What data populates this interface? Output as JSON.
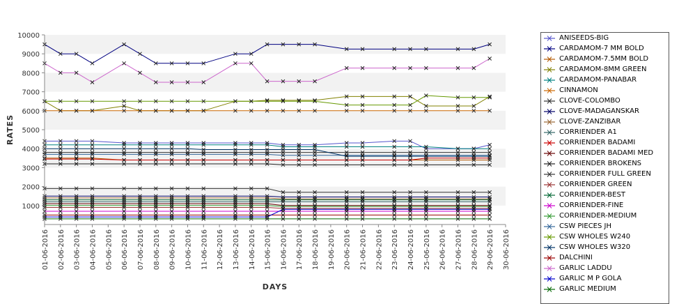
{
  "chart_data": {
    "type": "line",
    "xlabel": "DAYS",
    "ylabel": "RATES",
    "ylim": [
      0,
      10000
    ],
    "yticks": [
      1000,
      2000,
      3000,
      4000,
      5000,
      6000,
      7000,
      8000,
      9000,
      10000
    ],
    "categories": [
      "01-06-2016",
      "02-06-2016",
      "03-06-2016",
      "04-06-2016",
      "05-06-2016",
      "06-06-2016",
      "07-06-2016",
      "08-06-2016",
      "09-06-2016",
      "10-06-2016",
      "11-06-2016",
      "12-06-2016",
      "13-06-2016",
      "14-06-2016",
      "15-06-2016",
      "16-06-2016",
      "17-06-2016",
      "18-06-2016",
      "19-06-2016",
      "20-06-2016",
      "21-06-2016",
      "22-06-2016",
      "23-06-2016",
      "24-06-2016",
      "25-06-2016",
      "26-06-2016",
      "27-06-2016",
      "28-06-2016",
      "29-06-2016",
      "30-06-2016"
    ],
    "legend_position": "right",
    "grid": true,
    "series": [
      {
        "name": "ANISEEDS-BIG",
        "color": "#5555cc",
        "values": [
          4400,
          4400,
          4400,
          4400,
          null,
          4300,
          4300,
          4300,
          4300,
          4300,
          4300,
          null,
          4300,
          4300,
          4300,
          4200,
          4200,
          4200,
          null,
          4300,
          4300,
          null,
          4400,
          4400,
          4000,
          null,
          4000,
          4000,
          4200,
          null
        ]
      },
      {
        "name": "CARDAMOM-7 MM BOLD",
        "color": "#000080",
        "values": [
          9500,
          9000,
          9000,
          8500,
          null,
          9500,
          9000,
          8500,
          8500,
          8500,
          8500,
          null,
          9000,
          9000,
          9500,
          9500,
          9500,
          9500,
          null,
          9250,
          9250,
          null,
          9250,
          9250,
          9250,
          null,
          9250,
          9250,
          9500,
          null
        ]
      },
      {
        "name": "CARDAMOM-7.5MM BOLD",
        "color": "#b35900",
        "values": [
          3500,
          3500,
          3500,
          3500,
          null,
          3400,
          3400,
          3400,
          3400,
          3400,
          3400,
          null,
          3400,
          3400,
          3400,
          3400,
          3400,
          3400,
          null,
          3400,
          3400,
          null,
          3400,
          3400,
          3400,
          null,
          3400,
          3400,
          3400,
          null
        ]
      },
      {
        "name": "CARDAMOM-8MM GREEN",
        "color": "#808000",
        "values": [
          6500,
          6000,
          6000,
          6000,
          null,
          6250,
          6000,
          6000,
          6000,
          6000,
          6000,
          null,
          6500,
          6500,
          6550,
          6550,
          6550,
          6550,
          null,
          6750,
          6750,
          null,
          6750,
          6750,
          6250,
          null,
          6250,
          6250,
          6750,
          null
        ]
      },
      {
        "name": "CARDAMOM-PANABAR",
        "color": "#008080",
        "values": [
          4200,
          4200,
          4200,
          4200,
          null,
          4200,
          4200,
          4200,
          4200,
          4200,
          4200,
          null,
          4200,
          4200,
          4200,
          4100,
          4100,
          4100,
          null,
          4100,
          4100,
          null,
          4100,
          4100,
          4100,
          null,
          4000,
          4000,
          4000,
          null
        ]
      },
      {
        "name": "CINNAMON",
        "color": "#cc6600",
        "values": [
          6000,
          6000,
          6000,
          6000,
          null,
          6000,
          6000,
          6000,
          6000,
          6000,
          6000,
          null,
          6000,
          6000,
          6000,
          6000,
          6000,
          6000,
          null,
          6000,
          6000,
          null,
          6000,
          6000,
          6000,
          null,
          6000,
          6000,
          6000,
          null
        ]
      },
      {
        "name": "CLOVE-COLOMBO",
        "color": "#333333",
        "values": [
          1900,
          1900,
          1900,
          1900,
          null,
          1900,
          1900,
          1900,
          1900,
          1900,
          1900,
          null,
          1900,
          1900,
          1900,
          1700,
          1700,
          1700,
          null,
          1700,
          1700,
          null,
          1700,
          1700,
          1700,
          null,
          1700,
          1700,
          1700,
          null
        ]
      },
      {
        "name": "CLOVE-MADAGANSKAR",
        "color": "#000066",
        "values": [
          1500,
          1500,
          1500,
          1500,
          null,
          1500,
          1500,
          1500,
          1500,
          1500,
          1500,
          null,
          1500,
          1500,
          1500,
          1450,
          1450,
          1450,
          null,
          1450,
          1450,
          null,
          1450,
          1450,
          1450,
          null,
          1450,
          1450,
          1450,
          null
        ]
      },
      {
        "name": "CLOVE-ZANZIBAR",
        "color": "#996633",
        "values": [
          1400,
          1400,
          1400,
          1400,
          null,
          1400,
          1400,
          1400,
          1400,
          1400,
          1400,
          null,
          1400,
          1400,
          1400,
          1350,
          1350,
          1350,
          null,
          1350,
          1350,
          null,
          1350,
          1350,
          1350,
          null,
          1350,
          1350,
          1350,
          null
        ]
      },
      {
        "name": "CORRIENDER A1",
        "color": "#336666",
        "values": [
          1200,
          1200,
          1200,
          1200,
          null,
          1200,
          1200,
          1200,
          1200,
          1200,
          1200,
          null,
          1200,
          1200,
          1200,
          1200,
          1200,
          1200,
          null,
          1200,
          1200,
          null,
          1200,
          1200,
          1200,
          null,
          1200,
          1200,
          1200,
          null
        ]
      },
      {
        "name": "CORRIENDER BADAMI",
        "color": "#cc0000",
        "values": [
          3450,
          3450,
          3450,
          3450,
          null,
          3400,
          3400,
          3400,
          3400,
          3400,
          3400,
          null,
          3400,
          3400,
          3400,
          3400,
          3400,
          3400,
          null,
          3400,
          3400,
          null,
          3400,
          3400,
          3500,
          null,
          3500,
          3500,
          3500,
          null
        ]
      },
      {
        "name": "CORRIENDER BADAMI MED",
        "color": "#660000",
        "values": [
          1100,
          1100,
          1100,
          1100,
          null,
          1100,
          1100,
          1100,
          1100,
          1100,
          1100,
          null,
          1100,
          1100,
          1100,
          1000,
          1000,
          1000,
          null,
          1000,
          1000,
          null,
          1000,
          1000,
          1000,
          null,
          1000,
          1000,
          1000,
          null
        ]
      },
      {
        "name": "CORRIENDER BROKENS",
        "color": "#222222",
        "values": [
          3200,
          3200,
          3200,
          3200,
          null,
          3200,
          3200,
          3200,
          3200,
          3200,
          3200,
          null,
          3200,
          3200,
          3200,
          3150,
          3150,
          3150,
          null,
          3150,
          3150,
          null,
          3150,
          3150,
          3150,
          null,
          3150,
          3150,
          3150,
          null
        ]
      },
      {
        "name": "CORRIENDER FULL GREEN",
        "color": "#333333",
        "values": [
          3800,
          3800,
          3800,
          3800,
          null,
          3800,
          3800,
          3800,
          3800,
          3800,
          3800,
          null,
          3800,
          3800,
          3800,
          3800,
          3800,
          3800,
          null,
          3800,
          3800,
          null,
          3800,
          3800,
          3800,
          null,
          3800,
          3800,
          3800,
          null
        ]
      },
      {
        "name": "CORRIENDER GREEN",
        "color": "#993333",
        "values": [
          900,
          900,
          900,
          900,
          null,
          900,
          900,
          900,
          900,
          900,
          900,
          null,
          900,
          900,
          900,
          850,
          850,
          850,
          null,
          850,
          850,
          null,
          850,
          850,
          850,
          null,
          850,
          850,
          850,
          null
        ]
      },
      {
        "name": "CORRIENDER-BEST",
        "color": "#006633",
        "values": [
          1300,
          1300,
          1300,
          1300,
          null,
          1300,
          1300,
          1300,
          1300,
          1300,
          1300,
          null,
          1300,
          1300,
          1300,
          1300,
          1300,
          1300,
          null,
          1300,
          1300,
          null,
          1300,
          1300,
          1300,
          null,
          1300,
          1300,
          1300,
          null
        ]
      },
      {
        "name": "CORRIENDER-FINE",
        "color": "#cc00cc",
        "values": [
          700,
          700,
          700,
          700,
          null,
          700,
          700,
          700,
          700,
          700,
          700,
          null,
          700,
          700,
          700,
          700,
          700,
          700,
          null,
          700,
          700,
          null,
          700,
          700,
          700,
          null,
          700,
          700,
          700,
          null
        ]
      },
      {
        "name": "CORRIENDER-MEDIUM",
        "color": "#339933",
        "values": [
          1000,
          1000,
          1000,
          1000,
          null,
          1000,
          1000,
          1000,
          1000,
          1000,
          1000,
          null,
          1000,
          1000,
          1000,
          950,
          950,
          950,
          null,
          950,
          950,
          null,
          950,
          950,
          950,
          null,
          950,
          950,
          950,
          null
        ]
      },
      {
        "name": "CSW PIECES JH",
        "color": "#336699",
        "values": [
          3700,
          3700,
          3700,
          3700,
          null,
          3700,
          3700,
          3700,
          3700,
          3700,
          3700,
          null,
          3700,
          3700,
          3700,
          3650,
          3650,
          3650,
          null,
          3650,
          3650,
          null,
          3650,
          3650,
          3650,
          null,
          3650,
          3650,
          3650,
          null
        ]
      },
      {
        "name": "CSW WHOLES W240",
        "color": "#669900",
        "values": [
          6500,
          6500,
          6500,
          6500,
          null,
          6500,
          6500,
          6500,
          6500,
          6500,
          6500,
          null,
          6500,
          6500,
          6500,
          6500,
          6500,
          6500,
          null,
          6300,
          6300,
          null,
          6300,
          6300,
          6800,
          null,
          6700,
          6700,
          6700,
          null
        ]
      },
      {
        "name": "CSW WHOLES W320",
        "color": "#003366",
        "values": [
          4000,
          4000,
          4000,
          4000,
          null,
          4000,
          4000,
          4000,
          4000,
          4000,
          3950,
          null,
          3950,
          3950,
          3950,
          3950,
          3950,
          3950,
          null,
          3600,
          3600,
          null,
          3600,
          3600,
          3600,
          null,
          3600,
          3600,
          3600,
          null
        ]
      },
      {
        "name": "DALCHINI",
        "color": "#990000",
        "values": [
          500,
          500,
          500,
          500,
          null,
          500,
          500,
          500,
          500,
          500,
          500,
          null,
          500,
          500,
          500,
          500,
          500,
          500,
          null,
          500,
          500,
          null,
          500,
          500,
          500,
          null,
          500,
          500,
          500,
          null
        ]
      },
      {
        "name": "GARLIC LADDU",
        "color": "#cc66cc",
        "values": [
          8500,
          8000,
          8000,
          7500,
          null,
          8500,
          8000,
          7500,
          7500,
          7500,
          7500,
          null,
          8500,
          8500,
          7550,
          7550,
          7550,
          7550,
          null,
          8250,
          8250,
          null,
          8250,
          8250,
          8250,
          null,
          8250,
          8250,
          8750,
          null
        ]
      },
      {
        "name": "GARLIC M P GOLA",
        "color": "#0000cc",
        "values": [
          400,
          400,
          400,
          400,
          null,
          400,
          400,
          400,
          400,
          400,
          400,
          null,
          400,
          400,
          400,
          800,
          800,
          800,
          null,
          800,
          800,
          null,
          800,
          800,
          800,
          null,
          800,
          800,
          800,
          null
        ]
      },
      {
        "name": "GARLIC MEDIUM",
        "color": "#006600",
        "values": [
          300,
          300,
          300,
          300,
          null,
          300,
          300,
          300,
          300,
          300,
          300,
          null,
          300,
          300,
          300,
          300,
          300,
          300,
          null,
          300,
          300,
          null,
          300,
          300,
          300,
          null,
          300,
          300,
          300,
          null
        ]
      }
    ]
  }
}
